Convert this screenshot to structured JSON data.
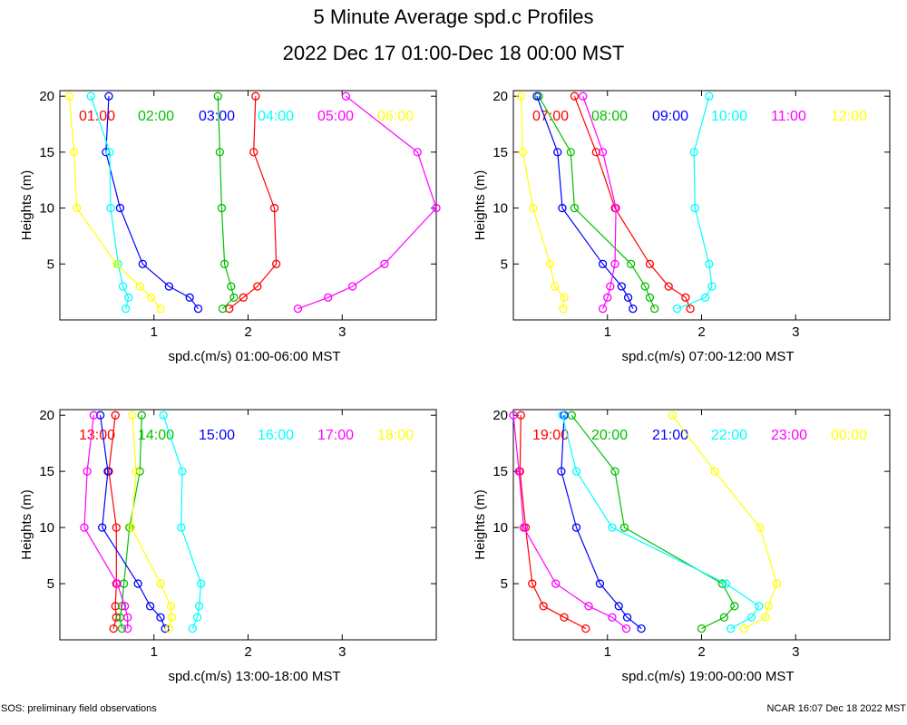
{
  "title": "5 Minute Average spd.c Profiles",
  "subtitle": "2022 Dec 17 01:00-Dec 18 00:00 MST",
  "footer_left": "SOS: preliminary field observations",
  "footer_right": "NCAR 16:07 Dec 18 2022 MST",
  "ylabel": "Heights (m)",
  "series_colors": [
    "#ff0000",
    "#00c000",
    "#0000ff",
    "#00ffff",
    "#ff00ff",
    "#ffff00"
  ],
  "chart_data": [
    {
      "type": "line",
      "title": "",
      "xlabel": "spd.c(m/s) 01:00-06:00 MST",
      "ylabel": "Heights (m)",
      "xlim": [
        0,
        4
      ],
      "ylim": [
        0,
        20.5
      ],
      "x_ticks": [
        "1",
        "2",
        "3"
      ],
      "y_ticks": [
        "5",
        "10",
        "15",
        "20"
      ],
      "heights": [
        1,
        2,
        3,
        5,
        10,
        15,
        20
      ],
      "series": [
        {
          "name": "01:00",
          "values": [
            1.8,
            1.95,
            2.1,
            2.3,
            2.28,
            2.06,
            2.08
          ]
        },
        {
          "name": "02:00",
          "values": [
            1.73,
            1.85,
            1.82,
            1.75,
            1.72,
            1.7,
            1.68
          ]
        },
        {
          "name": "03:00",
          "values": [
            1.47,
            1.38,
            1.16,
            0.88,
            0.64,
            0.49,
            0.52
          ]
        },
        {
          "name": "04:00",
          "values": [
            0.7,
            0.73,
            0.67,
            0.62,
            0.54,
            0.53,
            0.33
          ]
        },
        {
          "name": "05:00",
          "values": [
            2.53,
            2.85,
            3.11,
            3.45,
            4.0,
            3.8,
            3.04
          ]
        },
        {
          "name": "06:00",
          "values": [
            1.07,
            0.97,
            0.85,
            0.6,
            0.18,
            0.15,
            0.1
          ]
        }
      ]
    },
    {
      "type": "line",
      "title": "",
      "xlabel": "spd.c(m/s) 07:00-12:00 MST",
      "ylabel": "Heights (m)",
      "xlim": [
        0,
        4
      ],
      "ylim": [
        0,
        20.5
      ],
      "x_ticks": [
        "1",
        "2",
        "3"
      ],
      "y_ticks": [
        "5",
        "10",
        "15",
        "20"
      ],
      "heights": [
        1,
        2,
        3,
        5,
        10,
        15,
        20
      ],
      "series": [
        {
          "name": "07:00",
          "values": [
            1.88,
            1.83,
            1.65,
            1.45,
            1.08,
            0.88,
            0.65
          ]
        },
        {
          "name": "08:00",
          "values": [
            1.5,
            1.45,
            1.4,
            1.25,
            0.65,
            0.61,
            0.27
          ]
        },
        {
          "name": "09:00",
          "values": [
            1.27,
            1.22,
            1.15,
            0.95,
            0.52,
            0.47,
            0.25
          ]
        },
        {
          "name": "10:00",
          "values": [
            1.74,
            2.04,
            2.11,
            2.08,
            1.93,
            1.92,
            2.08
          ]
        },
        {
          "name": "11:00",
          "values": [
            0.95,
            1.0,
            1.03,
            1.08,
            1.09,
            0.95,
            0.74
          ]
        },
        {
          "name": "12:00",
          "values": [
            0.53,
            0.54,
            0.44,
            0.39,
            0.21,
            0.1,
            0.08
          ]
        }
      ]
    },
    {
      "type": "line",
      "title": "",
      "xlabel": "spd.c(m/s) 13:00-18:00 MST",
      "ylabel": "Heights (m)",
      "xlim": [
        0,
        4
      ],
      "ylim": [
        0,
        20.5
      ],
      "x_ticks": [
        "1",
        "2",
        "3"
      ],
      "y_ticks": [
        "5",
        "10",
        "15",
        "20"
      ],
      "heights": [
        1,
        2,
        3,
        5,
        10,
        15,
        20
      ],
      "series": [
        {
          "name": "13:00",
          "values": [
            0.57,
            0.6,
            0.59,
            0.6,
            0.6,
            0.52,
            0.59
          ]
        },
        {
          "name": "14:00",
          "values": [
            0.66,
            0.64,
            0.66,
            0.68,
            0.74,
            0.85,
            0.87
          ]
        },
        {
          "name": "15:00",
          "values": [
            1.12,
            1.07,
            0.96,
            0.83,
            0.45,
            0.51,
            0.43
          ]
        },
        {
          "name": "16:00",
          "values": [
            1.41,
            1.46,
            1.48,
            1.5,
            1.29,
            1.3,
            1.1
          ]
        },
        {
          "name": "17:00",
          "values": [
            0.72,
            0.72,
            0.69,
            0.61,
            0.26,
            0.29,
            0.36
          ]
        },
        {
          "name": "18:00",
          "values": [
            1.16,
            1.19,
            1.18,
            1.07,
            0.76,
            0.81,
            0.77
          ]
        }
      ]
    },
    {
      "type": "line",
      "title": "",
      "xlabel": "spd.c(m/s) 19:00-00:00 MST",
      "ylabel": "Heights (m)",
      "xlim": [
        0,
        4
      ],
      "ylim": [
        0,
        20.5
      ],
      "x_ticks": [
        "1",
        "2",
        "3"
      ],
      "y_ticks": [
        "5",
        "10",
        "15",
        "20"
      ],
      "heights": [
        1,
        2,
        3,
        5,
        10,
        15,
        20
      ],
      "series": [
        {
          "name": "19:00",
          "values": [
            0.77,
            0.54,
            0.32,
            0.2,
            0.13,
            0.07,
            0.08
          ]
        },
        {
          "name": "20:00",
          "values": [
            2.0,
            2.24,
            2.35,
            2.22,
            1.18,
            1.08,
            0.62
          ]
        },
        {
          "name": "21:00",
          "values": [
            1.36,
            1.21,
            1.12,
            0.92,
            0.67,
            0.51,
            0.54
          ]
        },
        {
          "name": "22:00",
          "values": [
            2.31,
            2.53,
            2.61,
            2.26,
            1.05,
            0.67,
            0.52
          ]
        },
        {
          "name": "23:00",
          "values": [
            1.2,
            1.05,
            0.8,
            0.45,
            0.11,
            0.06,
            0.0
          ]
        },
        {
          "name": "00:00",
          "values": [
            2.45,
            2.68,
            2.71,
            2.8,
            2.62,
            2.14,
            1.69
          ]
        }
      ]
    }
  ]
}
